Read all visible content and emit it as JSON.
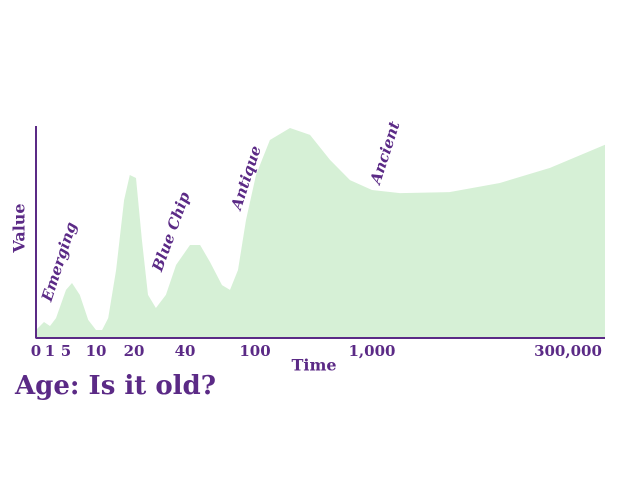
{
  "chart_data": {
    "type": "area",
    "title": "Age: Is it old?",
    "x_label": "Time",
    "y_label": "Value",
    "x": [
      0,
      0.57,
      1,
      2.5,
      5,
      6,
      7.3,
      8.7,
      10,
      11.6,
      13.2,
      15.3,
      17.4,
      18.9,
      20.8,
      23.1,
      25.5,
      28.6,
      32.5,
      36.5,
      44.3,
      52.9,
      61.4,
      71.7,
      78.6,
      85.4,
      92.3,
      107.7,
      215,
      369,
      523,
      677,
      831,
      1000,
      43700,
      119000,
      196000,
      272500,
      356400
    ],
    "values": [
      3.8,
      7.6,
      5.7,
      9.5,
      22.9,
      26.2,
      20.5,
      8.6,
      3.8,
      3.8,
      9.5,
      32.4,
      65.7,
      77.6,
      76.2,
      46.7,
      20.5,
      14.3,
      20.5,
      34.8,
      44.3,
      44.3,
      36.2,
      25.2,
      22.9,
      32.4,
      56.2,
      77.6,
      94.3,
      100,
      96.7,
      84.8,
      75.2,
      70.5,
      69,
      69.5,
      73.8,
      81,
      92
    ],
    "color": "#d6f0d6",
    "xlim": [
      0,
      356400
    ],
    "ylim": [
      0,
      100
    ],
    "xticks": [
      0,
      1,
      5,
      10,
      20,
      40,
      100,
      {
        "value": 1000,
        "label": "1,000"
      },
      {
        "value": 300000,
        "label": "300,000"
      }
    ],
    "annotations": [
      "Emerging",
      "Blue Chip",
      "Antique",
      "Ancient"
    ]
  }
}
